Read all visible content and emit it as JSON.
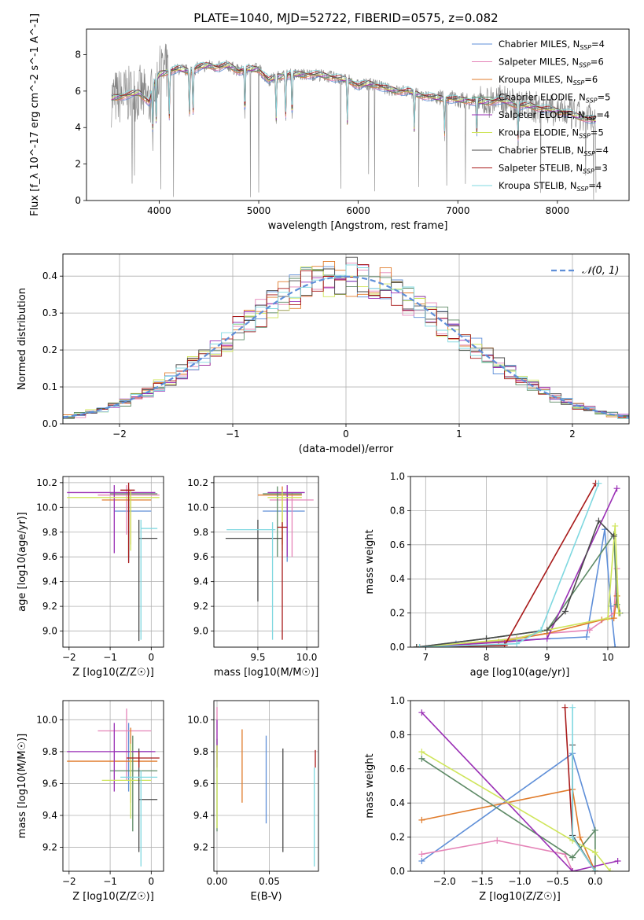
{
  "figure": {
    "title": "PLATE=1040, MJD=52722, FIBERID=0575, z=0.082"
  },
  "models": [
    {
      "name": "Chabrier MILES",
      "nssp": "4",
      "color": "#5f8fd8"
    },
    {
      "name": "Salpeter MILES",
      "nssp": "6",
      "color": "#e584b8"
    },
    {
      "name": "Kroupa MILES",
      "nssp": "6",
      "color": "#e07b2a"
    },
    {
      "name": "Chabrier ELODIE",
      "nssp": "5",
      "color": "#5e8a66"
    },
    {
      "name": "Salpeter ELODIE",
      "nssp": "4",
      "color": "#9a2fb5"
    },
    {
      "name": "Kroupa ELODIE",
      "nssp": "5",
      "color": "#cfe55a"
    },
    {
      "name": "Chabrier STELIB",
      "nssp": "4",
      "color": "#4a4a4a"
    },
    {
      "name": "Salpeter STELIB",
      "nssp": "3",
      "color": "#a81a1a"
    },
    {
      "name": "Kroupa STELIB",
      "nssp": "4",
      "color": "#7fd8e0"
    }
  ],
  "chart_data": [
    {
      "id": "spectrum",
      "type": "line",
      "xlabel": "wavelength [Angstrom, rest frame]",
      "ylabel": "Flux [f_λ 10^-17 erg cm^-2 s^-1 A^-1]",
      "xlim": [
        3270,
        8720
      ],
      "ylim": [
        0,
        9.4
      ],
      "xticks": [
        4000,
        5000,
        6000,
        7000,
        8000
      ],
      "yticks": [
        0,
        2,
        4,
        6,
        8
      ],
      "grid": false,
      "legend": "top-right",
      "data_color": "#808080",
      "model_continuum": {
        "x": [
          3520,
          3600,
          3700,
          3800,
          3900,
          3950,
          4000,
          4100,
          4200,
          4300,
          4400,
          4500,
          4600,
          4700,
          4800,
          4900,
          5000,
          5100,
          5200,
          5300,
          5400,
          5500,
          5600,
          5700,
          5800,
          5900,
          6000,
          6100,
          6200,
          6300,
          6400,
          6500,
          6600,
          6700,
          6800,
          6900,
          7000,
          7100,
          7200,
          7300,
          7400,
          7500,
          7600,
          7700,
          7800,
          7900,
          8000,
          8100,
          8200,
          8300,
          8380
        ],
        "y": [
          5.6,
          5.7,
          5.8,
          5.9,
          5.4,
          6.4,
          6.9,
          7.1,
          7.2,
          7.1,
          7.3,
          7.4,
          7.3,
          7.4,
          7.1,
          7.2,
          7.2,
          6.6,
          6.8,
          6.9,
          6.9,
          6.9,
          6.9,
          6.8,
          6.7,
          6.6,
          6.3,
          6.4,
          6.3,
          6.1,
          6.0,
          6.0,
          5.8,
          5.7,
          5.6,
          5.6,
          5.5,
          5.5,
          5.4,
          5.4,
          5.5,
          5.4,
          5.2,
          5.2,
          5.1,
          5.0,
          4.9,
          4.8,
          4.6,
          4.5,
          4.4
        ]
      },
      "absorption_features": [
        3934,
        3969,
        4102,
        4304,
        4340,
        4861,
        5175,
        5270,
        5335,
        5890,
        6563,
        6867,
        7190,
        7605
      ]
    },
    {
      "id": "residuals",
      "type": "line",
      "xlabel": "(data-model)/error",
      "ylabel": "Normed distribution",
      "xlim": [
        -2.5,
        2.5
      ],
      "ylim": [
        0,
        0.46
      ],
      "xticks": [
        -2,
        -1,
        0,
        1,
        2
      ],
      "yticks": [
        0.0,
        0.1,
        0.2,
        0.3,
        0.4
      ],
      "grid": true,
      "legend": "top-right",
      "normal_label": "𝒩(0, 1)",
      "normal_color": "#5f8fd8"
    },
    {
      "id": "age-vs-Z",
      "type": "scatter",
      "xlabel": "Z [log10(Z/Z☉)]",
      "ylabel": "age  [log10(age/yr)]",
      "xlim": [
        -2.15,
        0.3
      ],
      "ylim": [
        8.87,
        10.25
      ],
      "xticks": [
        -2,
        -1,
        0
      ],
      "yticks": [
        9.0,
        9.2,
        9.4,
        9.6,
        9.8,
        10.0,
        10.2
      ],
      "grid": true,
      "points": [
        {
          "x": -0.55,
          "xe": [
            -0.9,
            0.0
          ],
          "y": 9.97,
          "ye": [
            9.56,
            10.1
          ]
        },
        {
          "x": -0.6,
          "xe": [
            -1.3,
            0.2
          ],
          "y": 10.1,
          "ye": [
            9.78,
            10.18
          ]
        },
        {
          "x": -0.5,
          "xe": [
            -1.2,
            0.0
          ],
          "y": 10.06,
          "ye": [
            9.7,
            10.12
          ]
        },
        {
          "x": -0.55,
          "xe": [
            -1.0,
            0.15
          ],
          "y": 10.11,
          "ye": [
            9.6,
            10.16
          ]
        },
        {
          "x": -0.9,
          "xe": [
            -2.05,
            0.1
          ],
          "y": 10.12,
          "ye": [
            9.63,
            10.18
          ]
        },
        {
          "x": -0.5,
          "xe": [
            -2.05,
            0.2
          ],
          "y": 10.08,
          "ye": [
            9.65,
            10.14
          ]
        },
        {
          "x": -0.3,
          "xe": [
            -0.3,
            0.15
          ],
          "y": 9.75,
          "ye": [
            8.92,
            9.9
          ]
        },
        {
          "x": -0.55,
          "xe": [
            -0.75,
            -0.4
          ],
          "y": 10.14,
          "ye": [
            9.55,
            10.2
          ]
        },
        {
          "x": -0.25,
          "xe": [
            -0.25,
            0.15
          ],
          "y": 9.83,
          "ye": [
            8.93,
            9.9
          ]
        }
      ]
    },
    {
      "id": "age-vs-mass",
      "type": "scatter",
      "xlabel": "mass [log10(M/M☉)]",
      "ylabel": "",
      "xlim": [
        9.05,
        10.12
      ],
      "ylim": [
        8.87,
        10.25
      ],
      "xticks": [
        9.5,
        10.0
      ],
      "yticks": [
        9.0,
        9.2,
        9.4,
        9.6,
        9.8,
        10.0,
        10.2
      ],
      "grid": true,
      "points": [
        {
          "x": 9.8,
          "xe": [
            9.55,
            9.98
          ],
          "y": 9.97,
          "ye": [
            9.56,
            10.1
          ]
        },
        {
          "x": 9.85,
          "xe": [
            9.62,
            10.07
          ],
          "y": 10.06,
          "ye": [
            9.6,
            10.12
          ]
        },
        {
          "x": 9.75,
          "xe": [
            9.5,
            9.95
          ],
          "y": 10.1,
          "ye": [
            9.7,
            10.17
          ]
        },
        {
          "x": 9.7,
          "xe": [
            9.55,
            9.95
          ],
          "y": 10.11,
          "ye": [
            9.6,
            10.17
          ]
        },
        {
          "x": 9.8,
          "xe": [
            9.6,
            9.98
          ],
          "y": 10.12,
          "ye": [
            9.6,
            10.18
          ]
        },
        {
          "x": 9.75,
          "xe": [
            9.6,
            9.95
          ],
          "y": 10.08,
          "ye": [
            9.65,
            10.14
          ]
        },
        {
          "x": 9.5,
          "xe": [
            9.17,
            9.75
          ],
          "y": 9.75,
          "ye": [
            9.24,
            9.9
          ]
        },
        {
          "x": 9.75,
          "xe": [
            9.7,
            9.8
          ],
          "y": 9.84,
          "ye": [
            8.93,
            9.88
          ]
        },
        {
          "x": 9.65,
          "xe": [
            9.18,
            9.68
          ],
          "y": 9.82,
          "ye": [
            8.93,
            9.88
          ]
        }
      ]
    },
    {
      "id": "weight-vs-age",
      "type": "line",
      "xlabel": "age  [log10(age/yr)]",
      "ylabel": "mass weight",
      "xlim": [
        6.75,
        10.35
      ],
      "ylim": [
        0,
        1.0
      ],
      "xticks": [
        7,
        8,
        9,
        10
      ],
      "yticks": [
        0.0,
        0.2,
        0.4,
        0.6,
        0.8,
        1.0
      ],
      "grid": true,
      "series": [
        {
          "x": [
            6.85,
            7.5,
            8.5,
            9.65,
            9.95,
            10.05,
            10.12
          ],
          "y": [
            0.0,
            0.02,
            0.04,
            0.06,
            0.69,
            0.24,
            0.0
          ]
        },
        {
          "x": [
            6.9,
            8.0,
            9.0,
            9.7,
            10.1,
            10.15
          ],
          "y": [
            0.0,
            0.03,
            0.08,
            0.1,
            0.2,
            0.46
          ]
        },
        {
          "x": [
            6.9,
            8.2,
            9.0,
            9.9,
            10.1,
            10.15,
            10.2
          ],
          "y": [
            0.0,
            0.03,
            0.08,
            0.16,
            0.17,
            0.3,
            0.2
          ]
        },
        {
          "x": [
            6.85,
            8.0,
            9.0,
            10.1,
            10.15,
            10.2
          ],
          "y": [
            0.0,
            0.05,
            0.1,
            0.66,
            0.25,
            0.2
          ]
        },
        {
          "x": [
            6.85,
            8.3,
            9.0,
            10.15
          ],
          "y": [
            0.0,
            0.03,
            0.05,
            0.93
          ]
        },
        {
          "x": [
            6.85,
            8.5,
            9.0,
            10.0,
            10.12,
            10.18
          ],
          "y": [
            0.0,
            0.05,
            0.1,
            0.17,
            0.71,
            0.2
          ]
        },
        {
          "x": [
            6.85,
            8.0,
            9.0,
            9.3,
            9.85,
            10.1
          ],
          "y": [
            0.0,
            0.05,
            0.1,
            0.21,
            0.74,
            0.65
          ]
        },
        {
          "x": [
            6.9,
            8.3,
            9.8
          ],
          "y": [
            0.0,
            0.01,
            0.96
          ]
        },
        {
          "x": [
            6.9,
            8.5,
            8.9,
            9.85
          ],
          "y": [
            0.0,
            0.02,
            0.1,
            0.96
          ]
        }
      ]
    },
    {
      "id": "mass-vs-Z",
      "type": "scatter",
      "xlabel": "Z [log10(Z/Z☉)]",
      "ylabel": "mass [log10(M/M☉)]",
      "xlim": [
        -2.15,
        0.3
      ],
      "ylim": [
        9.05,
        10.12
      ],
      "xticks": [
        -2,
        -1,
        0
      ],
      "yticks": [
        9.2,
        9.4,
        9.6,
        9.8,
        10.0
      ],
      "grid": true,
      "points": [
        {
          "x": -0.55,
          "xe": [
            -0.9,
            0.0
          ],
          "y": 9.8,
          "ye": [
            9.55,
            9.98
          ]
        },
        {
          "x": -0.6,
          "xe": [
            -1.3,
            0.0
          ],
          "y": 9.93,
          "ye": [
            9.62,
            10.07
          ]
        },
        {
          "x": -0.5,
          "xe": [
            -2.05,
            0.15
          ],
          "y": 9.74,
          "ye": [
            9.48,
            9.95
          ]
        },
        {
          "x": -0.45,
          "xe": [
            -1.0,
            0.15
          ],
          "y": 9.68,
          "ye": [
            9.3,
            9.9
          ]
        },
        {
          "x": -0.9,
          "xe": [
            -2.05,
            0.1
          ],
          "y": 9.8,
          "ye": [
            9.55,
            9.98
          ]
        },
        {
          "x": -0.5,
          "xe": [
            -1.2,
            0.0
          ],
          "y": 9.62,
          "ye": [
            9.38,
            9.85
          ]
        },
        {
          "x": -0.3,
          "xe": [
            -0.3,
            0.15
          ],
          "y": 9.5,
          "ye": [
            9.17,
            9.82
          ]
        },
        {
          "x": -0.3,
          "xe": [
            -0.6,
            0.2
          ],
          "y": 9.76,
          "ye": [
            9.7,
            9.8
          ]
        },
        {
          "x": -0.25,
          "xe": [
            -0.75,
            0.15
          ],
          "y": 9.64,
          "ye": [
            9.08,
            9.68
          ]
        }
      ]
    },
    {
      "id": "mass-vs-ebv",
      "type": "scatter",
      "xlabel": "E(B-V)",
      "ylabel": "",
      "xlim": [
        -0.003,
        0.097
      ],
      "ylim": [
        9.05,
        10.12
      ],
      "xticks": [
        0.0,
        0.05
      ],
      "yticks": [
        9.2,
        9.4,
        9.6,
        9.8,
        10.0
      ],
      "grid": true,
      "points": [
        {
          "x": 0.047,
          "y": 9.65,
          "ye": [
            9.35,
            9.9
          ]
        },
        {
          "x": 0.0,
          "y": 9.9,
          "ye": [
            9.75,
            10.08
          ]
        },
        {
          "x": 0.024,
          "y": 9.7,
          "ye": [
            9.48,
            9.94
          ]
        },
        {
          "x": 0.0,
          "y": 9.6,
          "ye": [
            9.3,
            9.88
          ]
        },
        {
          "x": 0.0,
          "y": 9.85,
          "ye": [
            9.7,
            10.0
          ]
        },
        {
          "x": 0.0,
          "y": 9.6,
          "ye": [
            9.32,
            9.84
          ]
        },
        {
          "x": 0.063,
          "y": 9.5,
          "ye": [
            9.17,
            9.82
          ]
        },
        {
          "x": 0.094,
          "y": 9.76,
          "ye": [
            9.7,
            9.81
          ]
        },
        {
          "x": 0.093,
          "y": 9.4,
          "ye": [
            9.08,
            9.7
          ]
        }
      ]
    },
    {
      "id": "weight-vs-Z",
      "type": "line",
      "xlabel": "Z [log10(Z/Z☉)]",
      "ylabel": "mass weight",
      "xlim": [
        -2.45,
        0.45
      ],
      "ylim": [
        0,
        1.0
      ],
      "xticks": [
        -2.0,
        -1.5,
        -1.0,
        -0.5,
        0.0
      ],
      "yticks": [
        0.0,
        0.2,
        0.4,
        0.6,
        0.8,
        1.0
      ],
      "grid": true,
      "series": [
        {
          "x": [
            -2.3,
            -0.3,
            0.0
          ],
          "y": [
            0.06,
            0.69,
            0.24
          ]
        },
        {
          "x": [
            -2.3,
            -1.3,
            -0.4,
            -0.3
          ],
          "y": [
            0.1,
            0.18,
            0.1,
            0.0
          ]
        },
        {
          "x": [
            -2.3,
            -0.3,
            -0.2,
            0.0
          ],
          "y": [
            0.3,
            0.48,
            0.2,
            0.0
          ]
        },
        {
          "x": [
            -2.3,
            -0.3,
            0.0,
            0.0
          ],
          "y": [
            0.66,
            0.08,
            0.24,
            0.0
          ]
        },
        {
          "x": [
            -2.3,
            -0.3,
            0.3
          ],
          "y": [
            0.93,
            0.0,
            0.06
          ]
        },
        {
          "x": [
            -2.3,
            -0.3,
            0.0,
            0.2
          ],
          "y": [
            0.7,
            0.18,
            0.11,
            0.0
          ]
        },
        {
          "x": [
            -0.3,
            -0.3,
            0.0
          ],
          "y": [
            0.74,
            0.21,
            0.0
          ]
        },
        {
          "x": [
            -0.4,
            -0.3,
            0.0
          ],
          "y": [
            0.96,
            0.2,
            0.0
          ]
        },
        {
          "x": [
            -0.3,
            -0.3,
            0.0
          ],
          "y": [
            0.96,
            0.2,
            0.0
          ]
        }
      ]
    }
  ]
}
